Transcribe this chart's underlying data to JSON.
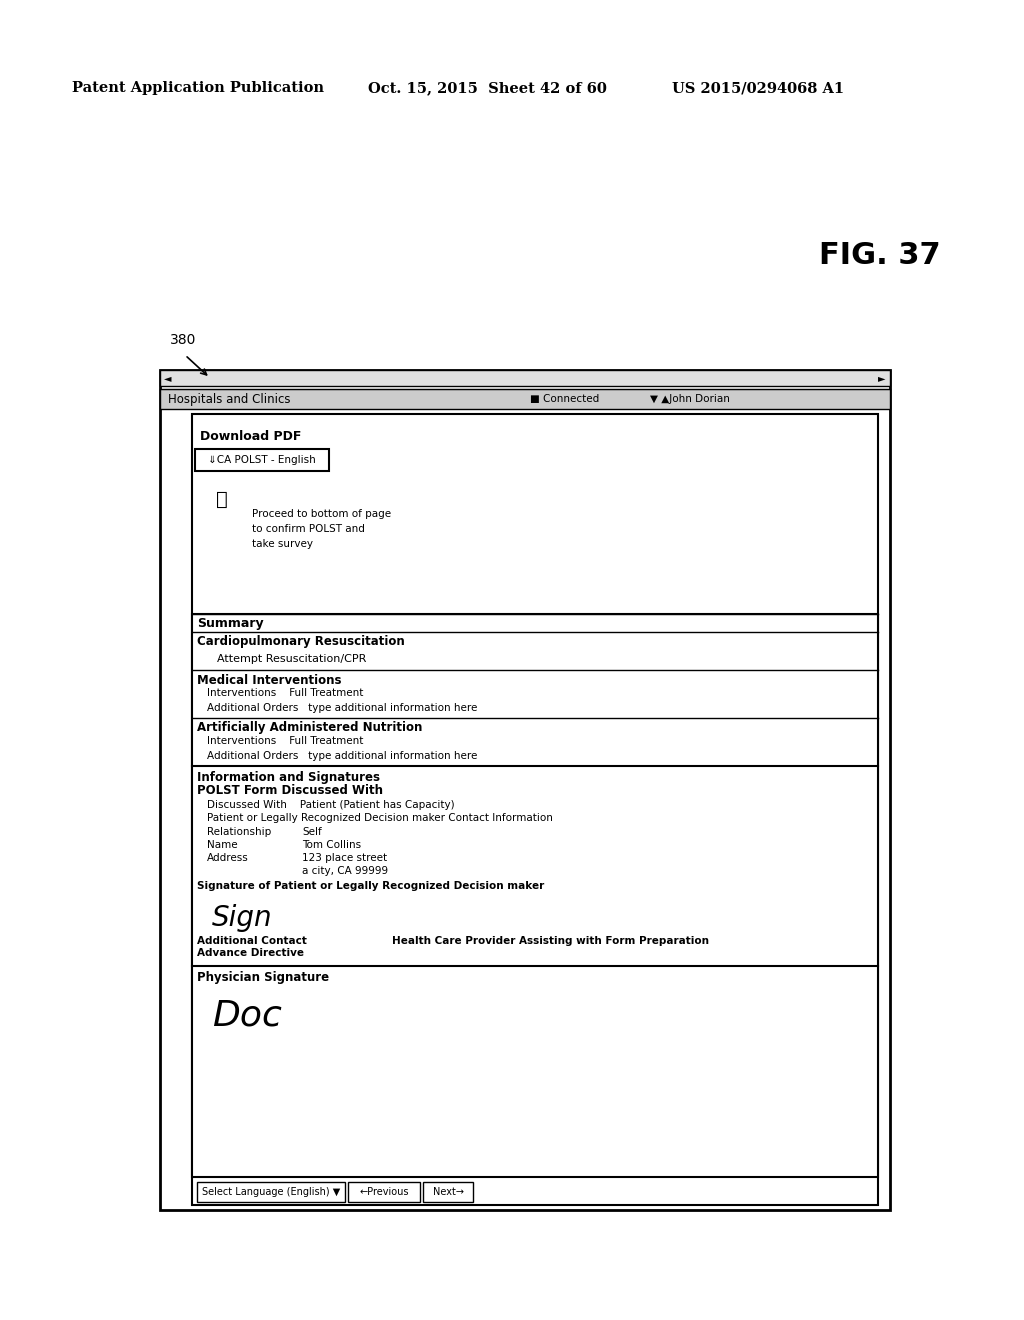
{
  "title_left": "Patent Application Publication",
  "title_mid": "Oct. 15, 2015  Sheet 42 of 60",
  "title_right": "US 2015/0294068 A1",
  "fig_label": "FIG. 37",
  "ref_label": "380",
  "bg_color": "#ffffff",
  "header_bar_text": "Hospitals and Clinics",
  "nav_left": "◄",
  "nav_right": "►",
  "connected_text": "■ Connected",
  "user_text": "▼ ▲John Dorian",
  "download_pdf_title": "Download PDF",
  "download_pdf_btn": "⇓CA POLST - English",
  "download_icon": "ⓘ",
  "download_pdf_note1": "Proceed to bottom of page",
  "download_pdf_note2": "to confirm POLST and",
  "download_pdf_note3": "take survey",
  "summary_header": "Summary",
  "cpr_label": "Cardiopulmonary Resuscitation",
  "cpr_value": "Attempt Resuscitation/CPR",
  "med_int_header": "Medical Interventions",
  "med_int_line1": "Interventions    Full Treatment",
  "med_int_line2": "Additional Orders   type additional information here",
  "art_nut_header": "Artificially Administered Nutrition",
  "art_nut_line1": "Interventions    Full Treatment",
  "art_nut_line2": "Additional Orders   type additional information here",
  "info_sig_header": "Information and Signatures",
  "polst_header": "POLST Form Discussed With",
  "discussed_with": "Discussed With    Patient (Patient has Capacity)",
  "patient_or_legally": "Patient or Legally Recognized Decision maker Contact Information",
  "relationship_label": "Relationship",
  "relationship_val": "Self",
  "name_label": "Name",
  "name_val": "Tom Collins",
  "address_label": "Address",
  "address_val1": "123 place street",
  "address_val2": "a city, CA 99999",
  "sig_patient": "Signature of Patient or Legally Recognized Decision maker",
  "add_contact": "Additional Contact",
  "advance_dir": "Advance Directive",
  "health_care": "Health Care Provider Assisting with Form Preparation",
  "physician_sig_label": "Physician Signature",
  "bottom_select": "Select Language (English) ▼",
  "bottom_prev": "←Previous",
  "bottom_next": "Next→"
}
